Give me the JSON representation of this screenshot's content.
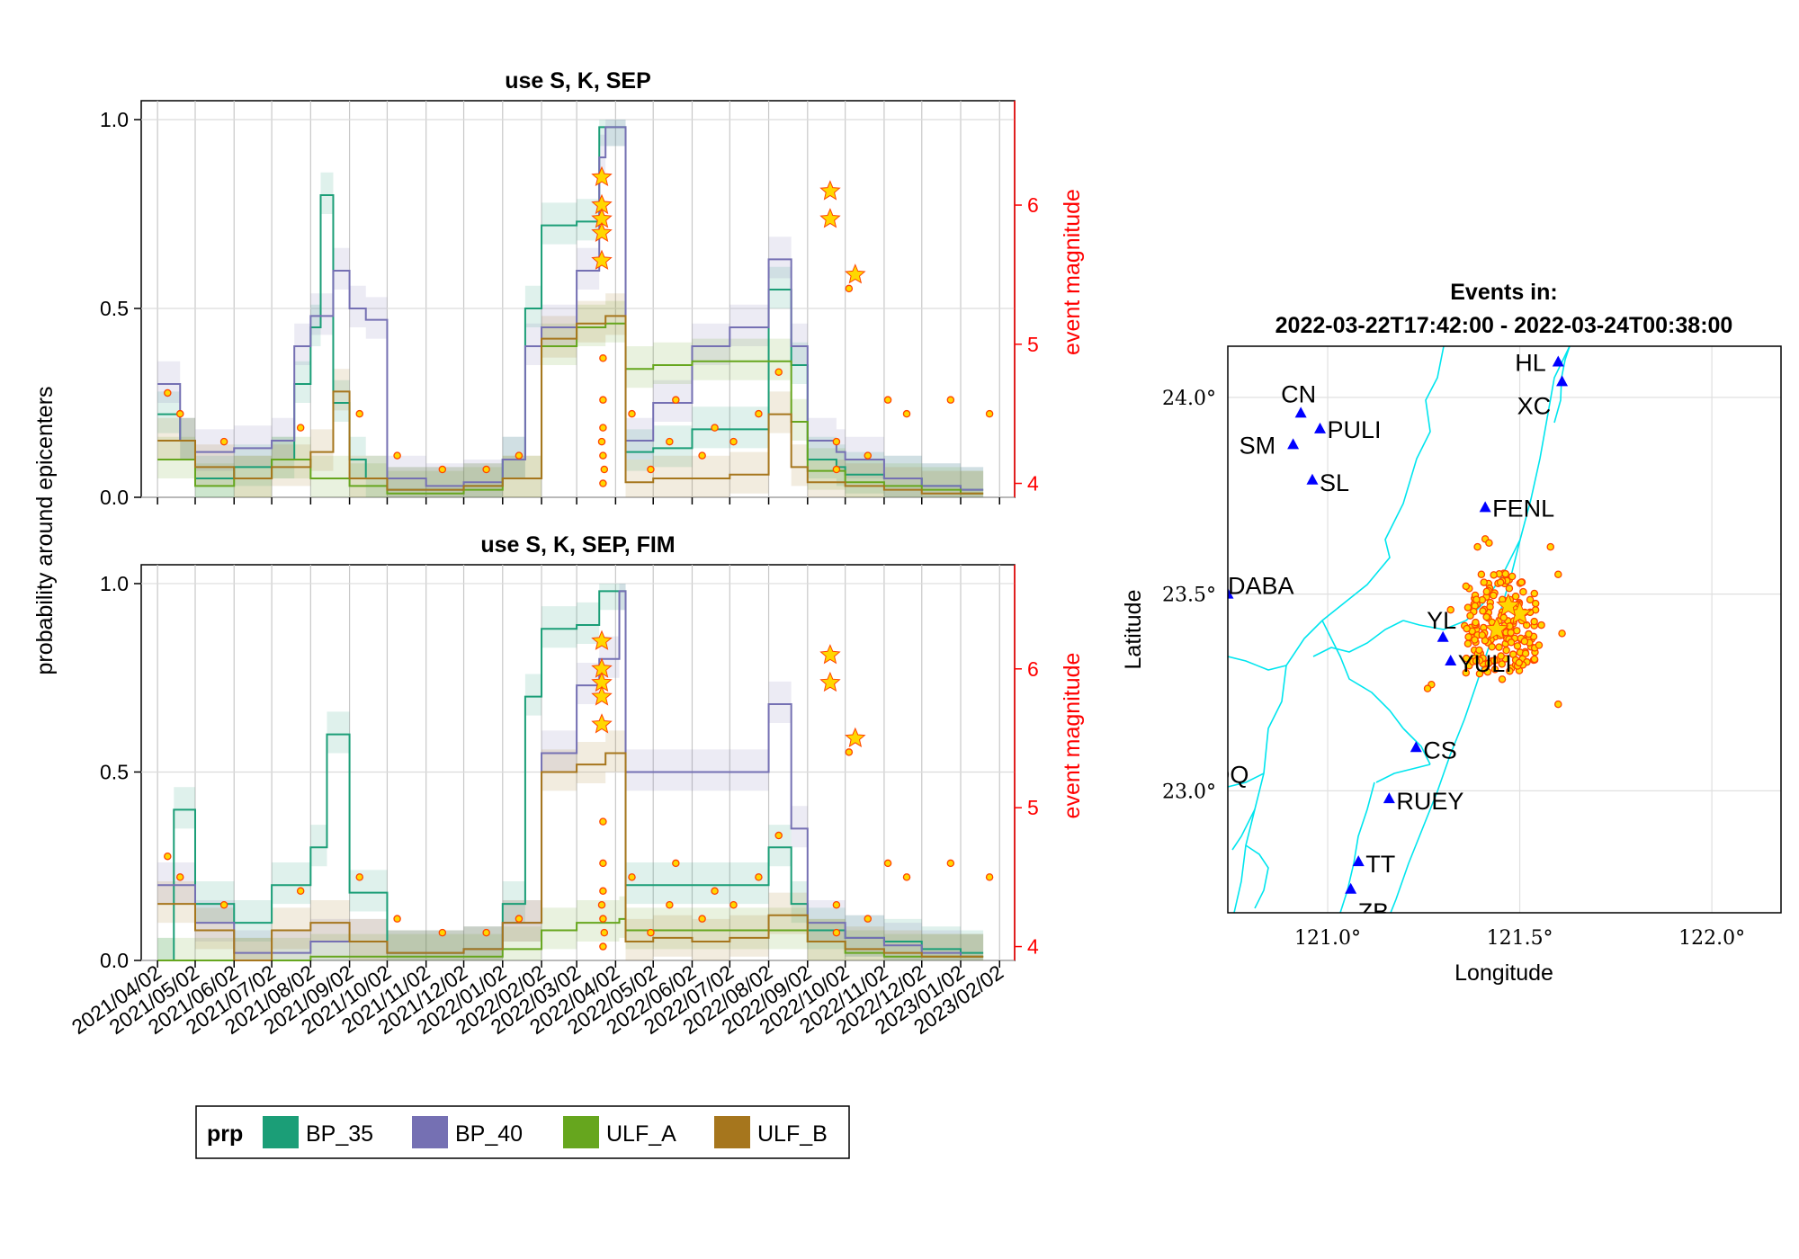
{
  "colors": {
    "BP_35": "#1b9e77",
    "BP_40": "#7570b3",
    "ULF_A": "#66a61e",
    "ULF_B": "#a6761d",
    "event_fill": "#ffd700",
    "event_edge": "#ff4500",
    "station": "#0000ff",
    "coast": "#00e5ee",
    "magnitude_axis": "#ff0000"
  },
  "chart_data": [
    {
      "type": "line",
      "title": "use S, K, SEP",
      "ylabel": "probability around epicenters",
      "y2label": "event magnitude",
      "ylim": [
        0,
        1.05
      ],
      "y2lim": [
        3.9,
        6.75
      ],
      "yticks": [
        "0.0",
        "0.5",
        "1.0"
      ],
      "y2ticks": [
        "4",
        "5",
        "6"
      ],
      "xlim": [
        "2021-03-20",
        "2023-02-14"
      ],
      "grid": true,
      "series": [
        {
          "name": "BP_35",
          "x": [
            "2021-04-02",
            "2021-04-20",
            "2021-05-02",
            "2021-06-02",
            "2021-07-02",
            "2021-07-20",
            "2021-08-02",
            "2021-08-10",
            "2021-08-20",
            "2021-09-02",
            "2021-09-15",
            "2021-10-02",
            "2021-11-02",
            "2021-12-02",
            "2022-01-02",
            "2022-01-20",
            "2022-02-02",
            "2022-03-02",
            "2022-03-20",
            "2022-03-25",
            "2022-04-05",
            "2022-04-10",
            "2022-05-02",
            "2022-06-02",
            "2022-07-02",
            "2022-08-02",
            "2022-08-20",
            "2022-09-02",
            "2022-09-25",
            "2022-10-02",
            "2022-11-02",
            "2022-12-02",
            "2023-01-02"
          ],
          "values": [
            0.22,
            0.15,
            0.05,
            0.08,
            0.1,
            0.3,
            0.45,
            0.8,
            0.25,
            0.1,
            0.05,
            0.02,
            0.02,
            0.03,
            0.1,
            0.5,
            0.72,
            0.73,
            0.98,
            0.98,
            0.98,
            0.12,
            0.13,
            0.18,
            0.18,
            0.55,
            0.35,
            0.1,
            0.08,
            0.06,
            0.05,
            0.03,
            0.02
          ]
        },
        {
          "name": "BP_40",
          "x": [
            "2021-04-02",
            "2021-04-20",
            "2021-05-02",
            "2021-06-02",
            "2021-07-02",
            "2021-07-20",
            "2021-08-02",
            "2021-08-20",
            "2021-09-02",
            "2021-09-15",
            "2021-10-02",
            "2021-11-02",
            "2021-12-02",
            "2022-01-02",
            "2022-01-20",
            "2022-02-02",
            "2022-03-02",
            "2022-03-20",
            "2022-03-25",
            "2022-04-05",
            "2022-04-10",
            "2022-05-02",
            "2022-06-02",
            "2022-07-02",
            "2022-08-02",
            "2022-08-20",
            "2022-09-02",
            "2022-09-25",
            "2022-10-02",
            "2022-11-02",
            "2022-12-02",
            "2023-01-02"
          ],
          "values": [
            0.3,
            0.15,
            0.12,
            0.13,
            0.15,
            0.4,
            0.48,
            0.6,
            0.5,
            0.47,
            0.05,
            0.03,
            0.04,
            0.1,
            0.4,
            0.45,
            0.6,
            0.9,
            0.98,
            0.98,
            0.15,
            0.25,
            0.4,
            0.45,
            0.63,
            0.4,
            0.15,
            0.12,
            0.1,
            0.05,
            0.03,
            0.02
          ]
        },
        {
          "name": "ULF_A",
          "x": [
            "2021-04-02",
            "2021-05-02",
            "2021-06-02",
            "2021-07-02",
            "2021-08-02",
            "2021-09-02",
            "2021-10-02",
            "2021-11-02",
            "2021-12-02",
            "2022-01-02",
            "2022-02-02",
            "2022-03-02",
            "2022-03-25",
            "2022-04-05",
            "2022-04-10",
            "2022-05-02",
            "2022-06-02",
            "2022-07-02",
            "2022-08-02",
            "2022-08-20",
            "2022-09-02",
            "2022-10-02",
            "2022-11-02",
            "2022-12-02",
            "2023-01-02"
          ],
          "values": [
            0.1,
            0.03,
            0.05,
            0.1,
            0.05,
            0.03,
            0.01,
            0.01,
            0.02,
            0.05,
            0.4,
            0.45,
            0.46,
            0.46,
            0.34,
            0.35,
            0.36,
            0.36,
            0.36,
            0.2,
            0.07,
            0.04,
            0.03,
            0.02,
            0.01
          ]
        },
        {
          "name": "ULF_B",
          "x": [
            "2021-04-02",
            "2021-05-02",
            "2021-06-02",
            "2021-07-02",
            "2021-08-02",
            "2021-08-20",
            "2021-09-02",
            "2021-10-02",
            "2021-11-02",
            "2021-12-02",
            "2022-01-02",
            "2022-02-02",
            "2022-03-02",
            "2022-03-25",
            "2022-04-05",
            "2022-04-10",
            "2022-05-02",
            "2022-06-02",
            "2022-07-02",
            "2022-08-02",
            "2022-08-20",
            "2022-09-02",
            "2022-10-02",
            "2022-11-02",
            "2022-12-02",
            "2023-01-02"
          ],
          "values": [
            0.15,
            0.08,
            0.05,
            0.08,
            0.12,
            0.28,
            0.05,
            0.02,
            0.02,
            0.03,
            0.05,
            0.42,
            0.46,
            0.48,
            0.48,
            0.04,
            0.05,
            0.05,
            0.06,
            0.22,
            0.08,
            0.04,
            0.03,
            0.02,
            0.01,
            0.01
          ]
        }
      ]
    },
    {
      "type": "line",
      "title": "use S, K, SEP, FIM",
      "ylabel": "probability around epicenters",
      "y2label": "event magnitude",
      "ylim": [
        0,
        1.05
      ],
      "y2lim": [
        3.9,
        6.75
      ],
      "yticks": [
        "0.0",
        "0.5",
        "1.0"
      ],
      "y2ticks": [
        "4",
        "5",
        "6"
      ],
      "xlim": [
        "2021-03-20",
        "2023-02-14"
      ],
      "grid": true,
      "series": [
        {
          "name": "BP_35",
          "x": [
            "2021-04-02",
            "2021-04-15",
            "2021-05-02",
            "2021-06-02",
            "2021-07-02",
            "2021-08-02",
            "2021-08-15",
            "2021-09-02",
            "2021-10-02",
            "2021-11-02",
            "2021-12-02",
            "2022-01-02",
            "2022-01-20",
            "2022-02-02",
            "2022-03-02",
            "2022-03-20",
            "2022-04-05",
            "2022-04-10",
            "2022-05-02",
            "2022-06-02",
            "2022-07-02",
            "2022-08-02",
            "2022-08-20",
            "2022-09-02",
            "2022-10-02",
            "2022-11-02",
            "2022-12-02",
            "2023-01-02"
          ],
          "values": [
            0.0,
            0.4,
            0.15,
            0.1,
            0.2,
            0.3,
            0.6,
            0.18,
            0.02,
            0.02,
            0.03,
            0.15,
            0.7,
            0.88,
            0.89,
            0.98,
            0.98,
            0.2,
            0.2,
            0.2,
            0.2,
            0.3,
            0.15,
            0.08,
            0.06,
            0.05,
            0.03,
            0.02
          ]
        },
        {
          "name": "BP_40",
          "x": [
            "2021-04-02",
            "2021-05-02",
            "2021-06-02",
            "2021-07-02",
            "2021-08-02",
            "2021-09-02",
            "2021-10-02",
            "2021-11-02",
            "2021-12-02",
            "2022-01-02",
            "2022-02-02",
            "2022-03-02",
            "2022-03-20",
            "2022-04-05",
            "2022-04-10",
            "2022-05-02",
            "2022-06-02",
            "2022-07-02",
            "2022-08-02",
            "2022-08-20",
            "2022-09-02",
            "2022-10-02",
            "2022-11-02",
            "2022-12-02",
            "2023-01-02"
          ],
          "values": [
            0.2,
            0.1,
            0.02,
            0.02,
            0.05,
            0.05,
            0.02,
            0.02,
            0.03,
            0.1,
            0.55,
            0.73,
            0.8,
            0.98,
            0.5,
            0.5,
            0.5,
            0.5,
            0.68,
            0.35,
            0.1,
            0.06,
            0.04,
            0.02,
            0.01
          ]
        },
        {
          "name": "ULF_A",
          "x": [
            "2021-04-02",
            "2021-05-02",
            "2021-06-02",
            "2021-07-02",
            "2021-08-02",
            "2021-09-02",
            "2021-10-02",
            "2021-11-02",
            "2021-12-02",
            "2022-01-02",
            "2022-02-02",
            "2022-03-02",
            "2022-04-05",
            "2022-04-10",
            "2022-05-02",
            "2022-06-02",
            "2022-07-02",
            "2022-08-02",
            "2022-09-02",
            "2022-10-02",
            "2022-11-02",
            "2022-12-02",
            "2023-01-02"
          ],
          "values": [
            0.0,
            0.0,
            0.0,
            0.0,
            0.01,
            0.01,
            0.01,
            0.01,
            0.01,
            0.03,
            0.08,
            0.1,
            0.11,
            0.08,
            0.08,
            0.08,
            0.08,
            0.08,
            0.05,
            0.02,
            0.01,
            0.01,
            0.01
          ]
        },
        {
          "name": "ULF_B",
          "x": [
            "2021-04-02",
            "2021-05-02",
            "2021-06-02",
            "2021-07-02",
            "2021-07-20",
            "2021-08-02",
            "2021-09-02",
            "2021-10-02",
            "2021-11-02",
            "2021-12-02",
            "2022-01-02",
            "2022-02-02",
            "2022-03-02",
            "2022-03-25",
            "2022-04-05",
            "2022-04-10",
            "2022-05-02",
            "2022-06-02",
            "2022-07-02",
            "2022-08-02",
            "2022-09-02",
            "2022-10-02",
            "2022-11-02",
            "2022-12-02",
            "2023-01-02"
          ],
          "values": [
            0.15,
            0.08,
            0.0,
            0.08,
            0.08,
            0.1,
            0.05,
            0.02,
            0.02,
            0.03,
            0.1,
            0.5,
            0.52,
            0.55,
            0.55,
            0.05,
            0.06,
            0.05,
            0.06,
            0.12,
            0.05,
            0.03,
            0.02,
            0.01,
            0.01
          ]
        }
      ],
      "events": {
        "x": [
          "2021-04-10",
          "2021-04-20",
          "2021-05-25",
          "2021-07-25",
          "2021-09-10",
          "2021-10-10",
          "2021-11-15",
          "2021-12-20",
          "2022-01-15",
          "2022-03-22",
          "2022-03-22",
          "2022-03-22",
          "2022-03-22",
          "2022-03-22",
          "2022-03-22",
          "2022-03-23",
          "2022-03-23",
          "2022-03-23",
          "2022-03-23",
          "2022-03-23",
          "2022-03-24",
          "2022-04-15",
          "2022-04-30",
          "2022-05-15",
          "2022-05-20",
          "2022-06-10",
          "2022-06-20",
          "2022-07-05",
          "2022-07-25",
          "2022-08-10",
          "2022-09-20",
          "2022-09-20",
          "2022-09-25",
          "2022-09-25",
          "2022-10-05",
          "2022-10-10",
          "2022-10-20",
          "2022-11-05",
          "2022-11-20",
          "2022-12-25",
          "2023-01-25"
        ],
        "magnitude": [
          4.65,
          4.5,
          4.3,
          4.4,
          4.5,
          4.2,
          4.1,
          4.1,
          4.2,
          6.2,
          6.0,
          5.9,
          5.8,
          5.6,
          4.3,
          4.9,
          4.6,
          4.4,
          4.2,
          4.0,
          4.1,
          4.5,
          4.1,
          4.3,
          4.6,
          4.2,
          4.4,
          4.3,
          4.5,
          4.8,
          6.1,
          5.9,
          4.3,
          4.1,
          5.4,
          5.5,
          4.2,
          4.6,
          4.5,
          4.6,
          4.5
        ]
      },
      "xticks": [
        "2021/04/02",
        "2021/05/02",
        "2021/06/02",
        "2021/07/02",
        "2021/08/02",
        "2021/09/02",
        "2021/10/02",
        "2021/11/02",
        "2021/12/02",
        "2022/01/02",
        "2022/02/02",
        "2022/03/02",
        "2022/04/02",
        "2022/05/02",
        "2022/06/02",
        "2022/07/02",
        "2022/08/02",
        "2022/09/02",
        "2022/10/02",
        "2022/11/02",
        "2022/12/02",
        "2023/01/02",
        "2023/02/02"
      ]
    },
    {
      "type": "scatter",
      "title": "Events in:",
      "subtitle": "2022-03-22T17:42:00 - 2022-03-24T00:38:00",
      "xlabel": "Longitude",
      "ylabel": "Latitude",
      "xlim": [
        120.74,
        122.18
      ],
      "ylim": [
        22.69,
        24.13
      ],
      "xticks": [
        "121.0°",
        "121.5°",
        "122.0°"
      ],
      "yticks": [
        "23.0°",
        "23.5°",
        "24.0°"
      ],
      "stations": [
        {
          "name": "CN",
          "lon": 120.93,
          "lat": 23.96
        },
        {
          "name": "PULI",
          "lon": 120.98,
          "lat": 23.92
        },
        {
          "name": "SM",
          "lon": 120.91,
          "lat": 23.88
        },
        {
          "name": "SL",
          "lon": 120.96,
          "lat": 23.79
        },
        {
          "name": "HL",
          "lon": 121.6,
          "lat": 24.09
        },
        {
          "name": "XC",
          "lon": 121.61,
          "lat": 24.04
        },
        {
          "name": "FENL",
          "lon": 121.41,
          "lat": 23.72
        },
        {
          "name": "DABA",
          "lon": 120.74,
          "lat": 23.5
        },
        {
          "name": "YL",
          "lon": 121.3,
          "lat": 23.39
        },
        {
          "name": "YULI",
          "lon": 121.32,
          "lat": 23.33
        },
        {
          "name": "CS",
          "lon": 121.23,
          "lat": 23.11
        },
        {
          "name": "DQ",
          "lon": 120.7,
          "lat": 23.02
        },
        {
          "name": "RUEY",
          "lon": 121.16,
          "lat": 22.98
        },
        {
          "name": "TT",
          "lon": 121.08,
          "lat": 22.82
        },
        {
          "name": "ZB",
          "lon": 121.06,
          "lat": 22.75
        }
      ],
      "mainshocks": [
        {
          "lon": 121.5,
          "lat": 23.45,
          "magnitude": 6.6
        },
        {
          "lon": 121.44,
          "lat": 23.41,
          "magnitude": 6.0
        },
        {
          "lon": 121.47,
          "lat": 23.47,
          "magnitude": 5.9
        }
      ]
    }
  ],
  "legend": {
    "title": "prp",
    "entries": [
      "BP_35",
      "BP_40",
      "ULF_A",
      "ULF_B"
    ]
  }
}
